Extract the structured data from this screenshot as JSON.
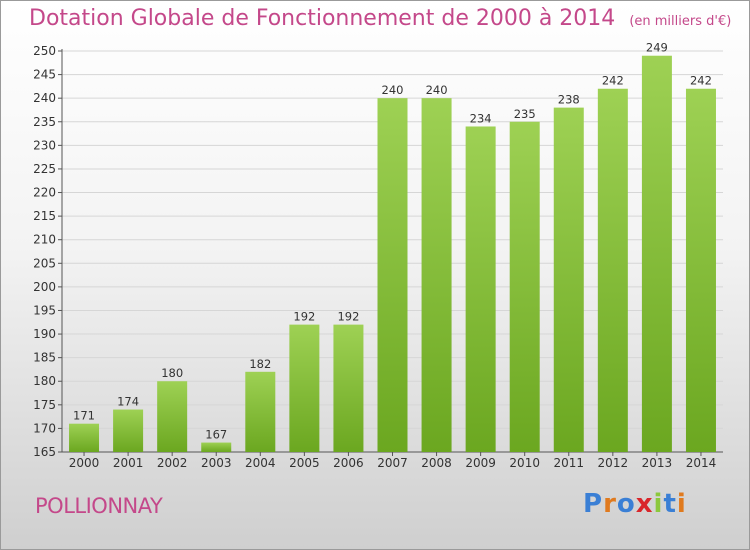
{
  "title": "Dotation Globale de Fonctionnement de 2000 à 2014",
  "subtitle": "(en milliers d'€)",
  "commune": "POLLIONNAY",
  "logo": {
    "text": "Proxiti",
    "letter_colors": [
      "#3a7fd5",
      "#e07a1e",
      "#3a7fd5",
      "#d9262b",
      "#8cc83c",
      "#3a7fd5",
      "#e07a1e"
    ]
  },
  "colors": {
    "title": "#c4488a",
    "bar_light": "#9ed154",
    "bar_dark": "#6ba720",
    "grid": "#d6d6d6"
  },
  "chart_data": {
    "type": "bar",
    "categories": [
      "2000",
      "2001",
      "2002",
      "2003",
      "2004",
      "2005",
      "2006",
      "2007",
      "2008",
      "2009",
      "2010",
      "2011",
      "2012",
      "2013",
      "2014"
    ],
    "values": [
      171,
      174,
      180,
      167,
      182,
      192,
      192,
      240,
      240,
      234,
      235,
      238,
      242,
      249,
      242
    ],
    "ylim": [
      165,
      250
    ],
    "ytick_step": 5,
    "grid": true,
    "xlabel": "",
    "ylabel": ""
  }
}
